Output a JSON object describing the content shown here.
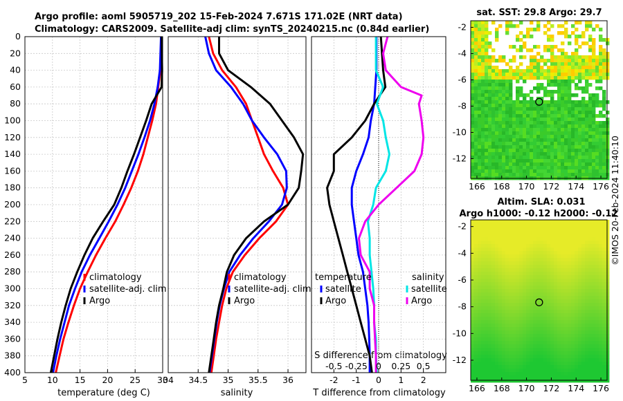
{
  "title": {
    "line1": "Argo profile: aoml 5905719_202 15-Feb-2024 7.671S 171.02E (NRT data)",
    "line2": "Climatology: CARS2009. Satellite-adj clim: synTS_20240215.nc (0.84d earlier)"
  },
  "depth_ticks": [
    "0",
    "20",
    "40",
    "60",
    "80",
    "100",
    "120",
    "140",
    "160",
    "180",
    "200",
    "220",
    "240",
    "260",
    "280",
    "300",
    "320",
    "340",
    "360",
    "380",
    "400"
  ],
  "colors": {
    "clim": "#ff0000",
    "sat": "#0000ff",
    "argo": "#000000",
    "sat_s": "#00e5e5",
    "argo_s": "#ee00ee"
  },
  "chart_data": [
    {
      "type": "line",
      "name": "temperature",
      "xlabel": "temperature (deg C)",
      "xlim": [
        5,
        30
      ],
      "ylim": [
        0,
        400
      ],
      "xticks": [
        "5",
        "10",
        "15",
        "20",
        "25",
        "30"
      ],
      "legend": [
        "climatology",
        "satellite-adj. clim",
        "Argo"
      ],
      "series": [
        {
          "name": "climatology",
          "depth": [
            0,
            40,
            60,
            80,
            100,
            120,
            140,
            160,
            180,
            200,
            220,
            240,
            260,
            280,
            300,
            320,
            340,
            360,
            380,
            400
          ],
          "values": [
            29.8,
            29.6,
            29.2,
            28.8,
            28.1,
            27.3,
            26.5,
            25.5,
            24.3,
            22.9,
            21.4,
            19.6,
            17.9,
            16.4,
            15.0,
            13.9,
            12.9,
            12.0,
            11.3,
            10.6
          ]
        },
        {
          "name": "satellite-adj. clim",
          "depth": [
            0,
            40,
            60,
            80,
            100,
            120,
            140,
            160,
            180,
            200,
            220,
            240,
            260,
            280,
            300,
            320,
            340,
            360,
            380,
            400
          ],
          "values": [
            29.7,
            29.5,
            29.1,
            28.5,
            27.7,
            26.7,
            25.6,
            24.4,
            23.2,
            21.8,
            20.2,
            18.5,
            16.8,
            15.3,
            14.1,
            13.0,
            12.2,
            11.4,
            10.7,
            10.1
          ]
        },
        {
          "name": "Argo",
          "depth": [
            0,
            40,
            60,
            80,
            100,
            120,
            140,
            160,
            180,
            200,
            220,
            240,
            260,
            280,
            300,
            320,
            340,
            360,
            380,
            400
          ],
          "values": [
            29.8,
            29.9,
            29.8,
            28.0,
            27.0,
            25.9,
            24.8,
            23.6,
            22.5,
            21.2,
            19.2,
            17.3,
            15.8,
            14.5,
            13.3,
            12.4,
            11.6,
            10.9,
            10.3,
            9.7
          ]
        }
      ]
    },
    {
      "type": "line",
      "name": "salinity",
      "xlabel": "salinity",
      "xlim": [
        34,
        36.3
      ],
      "ylim": [
        0,
        400
      ],
      "xticks": [
        "34",
        "34.5",
        "35",
        "35.5",
        "36"
      ],
      "legend": [
        "climatology",
        "satellite-adj. clim",
        "Argo"
      ],
      "series": [
        {
          "name": "climatology",
          "depth": [
            0,
            20,
            40,
            60,
            80,
            100,
            120,
            140,
            160,
            180,
            200,
            220,
            240,
            260,
            280,
            300,
            320,
            340,
            360,
            380,
            400
          ],
          "values": [
            34.68,
            34.75,
            34.9,
            35.13,
            35.3,
            35.4,
            35.5,
            35.6,
            35.75,
            35.92,
            36.0,
            35.8,
            35.52,
            35.28,
            35.08,
            34.97,
            34.9,
            34.85,
            34.8,
            34.76,
            34.72
          ]
        },
        {
          "name": "satellite-adj. clim",
          "depth": [
            0,
            20,
            40,
            60,
            80,
            100,
            120,
            140,
            160,
            180,
            200,
            220,
            240,
            260,
            280,
            300,
            320,
            340,
            360,
            380,
            400
          ],
          "values": [
            34.62,
            34.68,
            34.8,
            35.05,
            35.25,
            35.4,
            35.6,
            35.82,
            35.97,
            35.98,
            35.9,
            35.68,
            35.42,
            35.2,
            35.02,
            34.93,
            34.86,
            34.81,
            34.77,
            34.73,
            34.69
          ]
        },
        {
          "name": "Argo",
          "depth": [
            0,
            20,
            40,
            60,
            80,
            100,
            120,
            140,
            160,
            180,
            200,
            220,
            240,
            260,
            280,
            300,
            320,
            340,
            360,
            380,
            400
          ],
          "values": [
            34.85,
            34.85,
            35.0,
            35.38,
            35.7,
            35.9,
            36.1,
            36.25,
            36.22,
            36.18,
            36.0,
            35.6,
            35.3,
            35.1,
            34.98,
            34.92,
            34.85,
            34.8,
            34.76,
            34.72,
            34.68
          ]
        }
      ]
    },
    {
      "type": "line",
      "name": "difference from climatology",
      "xlabel": "T difference from climatology",
      "top_label": "S difference from climatology",
      "xlim": [
        -3,
        3
      ],
      "ylim": [
        0,
        400
      ],
      "xticks": [
        "-2",
        "-1",
        "0",
        "1",
        "2"
      ],
      "sticks": [
        "-0.5",
        "-0.25",
        "0",
        "0.25",
        "0.5"
      ],
      "legend_left": [
        "temperature",
        "satellite",
        "Argo"
      ],
      "legend_right": [
        "salinity",
        "satellite",
        "Argo"
      ],
      "series": [
        {
          "name": "T satellite",
          "depth": [
            0,
            40,
            80,
            100,
            120,
            140,
            160,
            180,
            200,
            220,
            240,
            260,
            280,
            300,
            320,
            340,
            360,
            380,
            400
          ],
          "values": [
            -0.1,
            -0.1,
            -0.2,
            -0.35,
            -0.45,
            -0.7,
            -1.0,
            -1.2,
            -1.2,
            -1.1,
            -1.0,
            -0.9,
            -0.7,
            -0.6,
            -0.5,
            -0.45,
            -0.42,
            -0.4,
            -0.4
          ]
        },
        {
          "name": "T Argo",
          "depth": [
            0,
            40,
            60,
            80,
            100,
            120,
            140,
            160,
            180,
            200,
            220,
            240,
            260,
            280,
            300,
            320,
            340,
            360,
            380,
            400
          ],
          "values": [
            0.1,
            0.2,
            0.3,
            -0.2,
            -0.6,
            -1.2,
            -2.0,
            -2.0,
            -2.3,
            -2.2,
            -2.0,
            -1.8,
            -1.6,
            -1.4,
            -1.2,
            -1.0,
            -0.8,
            -0.6,
            -0.4,
            -0.3
          ]
        },
        {
          "name": "S satellite",
          "depth": [
            0,
            40,
            60,
            80,
            100,
            120,
            140,
            160,
            180,
            200,
            220,
            240,
            260,
            280,
            300,
            320,
            340,
            360,
            380,
            400
          ],
          "values": [
            -0.03,
            -0.03,
            0.05,
            -0.02,
            0.05,
            0.08,
            0.12,
            0.08,
            -0.03,
            -0.06,
            -0.12,
            -0.1,
            -0.1,
            -0.08,
            -0.06,
            -0.05,
            -0.05,
            -0.03,
            -0.03,
            -0.02
          ]
        },
        {
          "name": "S Argo",
          "depth": [
            0,
            20,
            40,
            60,
            70,
            80,
            100,
            120,
            140,
            160,
            180,
            200,
            220,
            240,
            260,
            280,
            300,
            320,
            340,
            360,
            380,
            400
          ],
          "values": [
            0.1,
            0.05,
            0.08,
            0.25,
            0.48,
            0.45,
            0.48,
            0.5,
            0.48,
            0.4,
            0.2,
            0.0,
            -0.15,
            -0.22,
            -0.2,
            -0.1,
            -0.1,
            -0.05,
            -0.05,
            -0.04,
            -0.03,
            -0.03
          ]
        }
      ]
    },
    {
      "type": "heatmap",
      "name": "satellite SST",
      "title": "sat. SST: 29.8 Argo: 29.7",
      "xticks": [
        "166",
        "168",
        "170",
        "172",
        "174",
        "176"
      ],
      "yticks": [
        "-2",
        "-4",
        "-6",
        "-8",
        "-10",
        "-12"
      ],
      "xlim": [
        165.5,
        176.5
      ],
      "ylim": [
        -13.5,
        -1.5
      ],
      "marker": [
        171.02,
        -7.671
      ]
    },
    {
      "type": "heatmap",
      "name": "altimetry SLA",
      "title": "Altim. SLA: 0.031",
      "subtitle": "Argo h1000: -0.12 h2000: -0.12",
      "xticks": [
        "166",
        "168",
        "170",
        "172",
        "174",
        "176"
      ],
      "yticks": [
        "-2",
        "-4",
        "-6",
        "-8",
        "-10",
        "-12"
      ],
      "xlim": [
        165.5,
        176.5
      ],
      "ylim": [
        -13.5,
        -1.5
      ],
      "marker": [
        171.02,
        -7.671
      ]
    }
  ],
  "watermark": "©IMOS 20-Feb-2024 11:40:10"
}
